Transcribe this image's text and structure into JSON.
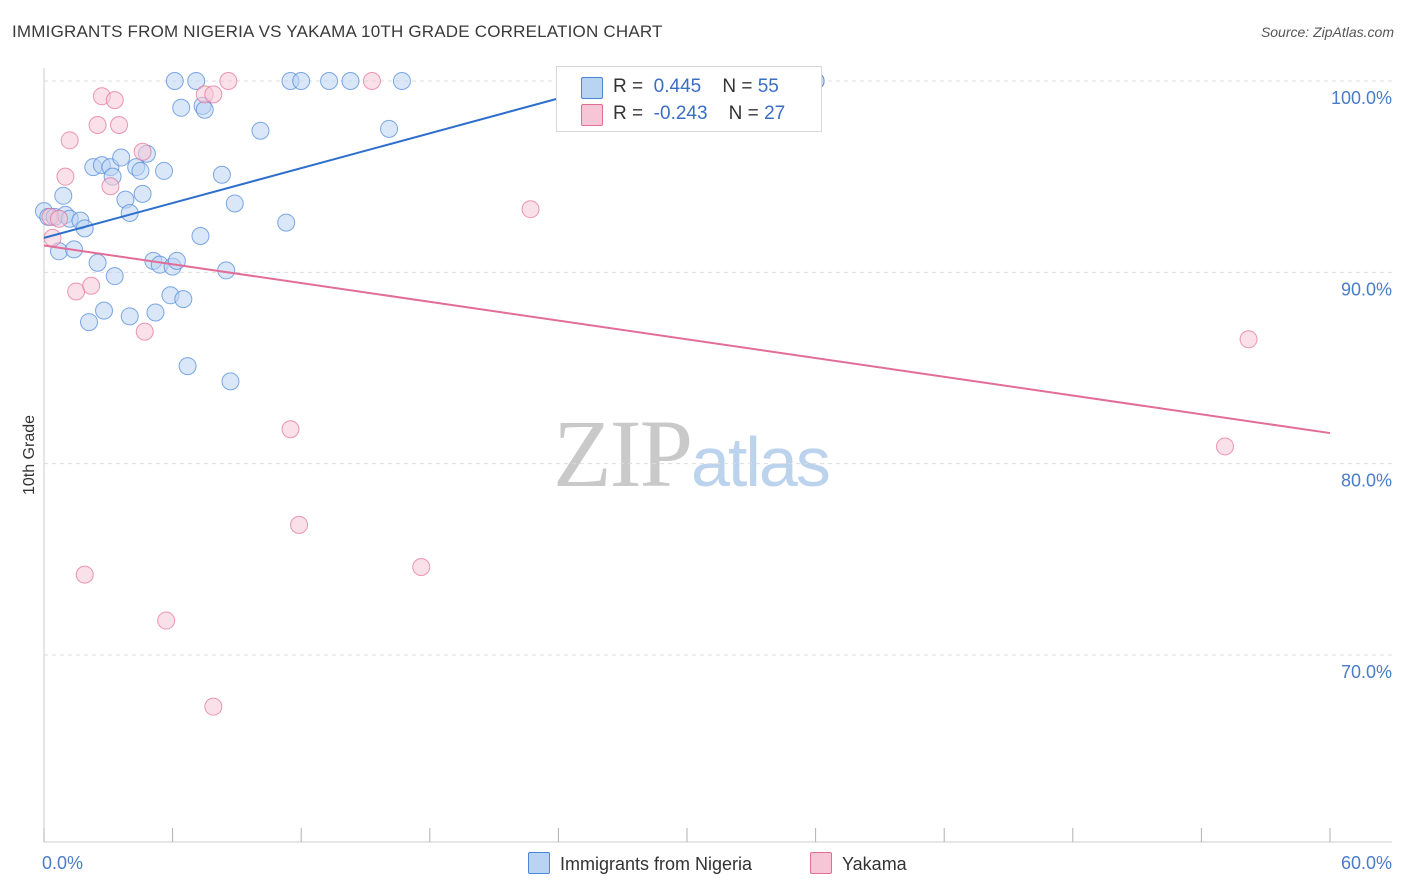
{
  "title": "IMMIGRANTS FROM NIGERIA VS YAKAMA 10TH GRADE CORRELATION CHART",
  "source": "Source: ZipAtlas.com",
  "watermark": {
    "zip": "ZIP",
    "atlas": "atlas"
  },
  "colors": {
    "blue": "#4a86d8",
    "blue_fill": "#b9d3f2",
    "pink": "#e36d99",
    "pink_fill": "#f6c6d6",
    "grid": "#dddddd",
    "axis_label": "#4a7cc9"
  },
  "legend": {
    "rows": [
      {
        "r_label": "R =",
        "r_value": "0.445",
        "n_label": "N =",
        "n_value": "55"
      },
      {
        "r_label": "R =",
        "r_value": "-0.243",
        "n_label": "N =",
        "n_value": "27"
      }
    ]
  },
  "chart_data": {
    "type": "scatter",
    "title": "IMMIGRANTS FROM NIGERIA VS YAKAMA 10TH GRADE CORRELATION CHART",
    "xlabel": "",
    "ylabel": "10th Grade",
    "xlim": [
      0,
      60
    ],
    "ylim": [
      61,
      101.5
    ],
    "x_tick_labels": [
      {
        "value": 0,
        "label": "0.0%"
      },
      {
        "value": 60,
        "label": "60.0%"
      }
    ],
    "y_tick_labels": [
      {
        "value": 100,
        "label": "100.0%"
      },
      {
        "value": 90,
        "label": "90.0%"
      },
      {
        "value": 80,
        "label": "80.0%"
      },
      {
        "value": 70,
        "label": "70.0%"
      }
    ],
    "legend_position": "bottom",
    "series": [
      {
        "name": "Immigrants from Nigeria",
        "color": "blue",
        "r": 0.445,
        "n": 55,
        "trend": {
          "x0": 0,
          "y0": 91.8,
          "x1": 27,
          "y1": 100.0
        },
        "points": [
          [
            0.0,
            93.2
          ],
          [
            0.2,
            92.9
          ],
          [
            0.5,
            92.9
          ],
          [
            0.7,
            91.1
          ],
          [
            0.9,
            94.0
          ],
          [
            1.0,
            93.0
          ],
          [
            1.2,
            92.8
          ],
          [
            1.4,
            91.2
          ],
          [
            1.7,
            92.7
          ],
          [
            1.9,
            92.3
          ],
          [
            2.1,
            87.4
          ],
          [
            2.3,
            95.5
          ],
          [
            2.5,
            90.5
          ],
          [
            2.7,
            95.6
          ],
          [
            2.8,
            88.0
          ],
          [
            3.1,
            95.5
          ],
          [
            3.2,
            95.0
          ],
          [
            3.3,
            89.8
          ],
          [
            3.6,
            96.0
          ],
          [
            3.8,
            93.8
          ],
          [
            4.0,
            87.7
          ],
          [
            4.0,
            93.1
          ],
          [
            4.3,
            95.5
          ],
          [
            4.5,
            95.3
          ],
          [
            4.6,
            94.1
          ],
          [
            4.8,
            96.2
          ],
          [
            5.1,
            90.6
          ],
          [
            5.2,
            87.9
          ],
          [
            5.4,
            90.4
          ],
          [
            5.6,
            95.3
          ],
          [
            5.9,
            88.8
          ],
          [
            6.0,
            90.3
          ],
          [
            6.1,
            100.0
          ],
          [
            6.2,
            90.6
          ],
          [
            6.4,
            98.6
          ],
          [
            6.5,
            88.6
          ],
          [
            6.7,
            85.1
          ],
          [
            7.1,
            100.0
          ],
          [
            7.3,
            91.9
          ],
          [
            7.4,
            98.7
          ],
          [
            7.5,
            98.5
          ],
          [
            8.3,
            95.1
          ],
          [
            8.5,
            90.1
          ],
          [
            8.7,
            84.3
          ],
          [
            8.9,
            93.6
          ],
          [
            10.1,
            97.4
          ],
          [
            11.3,
            92.6
          ],
          [
            11.5,
            100.0
          ],
          [
            12.0,
            100.0
          ],
          [
            13.3,
            100.0
          ],
          [
            14.3,
            100.0
          ],
          [
            16.1,
            97.5
          ],
          [
            16.7,
            100.0
          ],
          [
            36.0,
            100.0
          ],
          [
            36.0,
            100.0
          ]
        ]
      },
      {
        "name": "Yakama",
        "color": "pink",
        "r": -0.243,
        "n": 27,
        "trend": {
          "x0": 0,
          "y0": 91.4,
          "x1": 60,
          "y1": 81.6
        },
        "points": [
          [
            0.3,
            92.9
          ],
          [
            0.4,
            91.8
          ],
          [
            0.7,
            92.8
          ],
          [
            1.0,
            95.0
          ],
          [
            1.2,
            96.9
          ],
          [
            1.5,
            89.0
          ],
          [
            1.9,
            74.2
          ],
          [
            2.2,
            89.3
          ],
          [
            2.5,
            97.7
          ],
          [
            2.7,
            99.2
          ],
          [
            3.1,
            94.5
          ],
          [
            3.3,
            99.0
          ],
          [
            3.5,
            97.7
          ],
          [
            4.6,
            96.3
          ],
          [
            4.7,
            86.9
          ],
          [
            5.7,
            71.8
          ],
          [
            7.5,
            99.3
          ],
          [
            7.9,
            99.3
          ],
          [
            7.9,
            67.3
          ],
          [
            8.6,
            100.0
          ],
          [
            11.5,
            81.8
          ],
          [
            11.9,
            76.8
          ],
          [
            15.3,
            100.0
          ],
          [
            17.6,
            74.6
          ],
          [
            22.7,
            93.3
          ],
          [
            55.1,
            80.9
          ],
          [
            56.2,
            86.5
          ]
        ]
      }
    ]
  }
}
